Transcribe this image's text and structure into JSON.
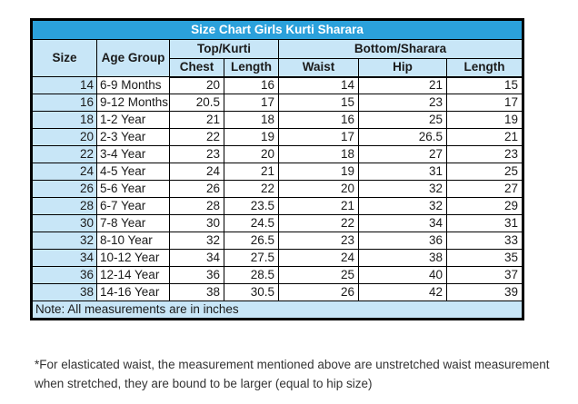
{
  "chart_data": {
    "type": "table",
    "title": "Size Chart Girls Kurti Sharara",
    "units": "inches",
    "header": {
      "size": "Size",
      "age_group": "Age Group",
      "top_group": "Top/Kurti",
      "bottom_group": "Bottom/Sharara",
      "chest": "Chest",
      "top_length": "Length",
      "waist": "Waist",
      "hip": "Hip",
      "bottom_length": "Length"
    },
    "columns": [
      "Size",
      "Age Group",
      "Chest",
      "Length",
      "Waist",
      "Hip",
      "Length"
    ],
    "column_groups": [
      {
        "label": "Top/Kurti",
        "columns": [
          "Chest",
          "Length"
        ]
      },
      {
        "label": "Bottom/Sharara",
        "columns": [
          "Waist",
          "Hip",
          "Length"
        ]
      }
    ],
    "rows": [
      [
        14,
        "6-9 Months",
        20,
        16,
        14,
        21,
        15
      ],
      [
        16,
        "9-12 Months",
        20.5,
        17,
        15,
        23,
        17
      ],
      [
        18,
        "1-2 Year",
        21,
        18,
        16,
        25,
        19
      ],
      [
        20,
        "2-3 Year",
        22,
        19,
        17,
        26.5,
        21
      ],
      [
        22,
        "3-4 Year",
        23,
        20,
        18,
        27,
        23
      ],
      [
        24,
        "4-5 Year",
        24,
        21,
        19,
        31,
        25
      ],
      [
        26,
        "5-6 Year",
        26,
        22,
        20,
        32,
        27
      ],
      [
        28,
        "6-7 Year",
        28,
        23.5,
        21,
        32,
        29
      ],
      [
        30,
        "7-8 Year",
        30,
        24.5,
        22,
        34,
        31
      ],
      [
        32,
        "8-10 Year",
        32,
        26.5,
        23,
        36,
        33
      ],
      [
        34,
        "10-12 Year",
        34,
        27.5,
        24,
        38,
        35
      ],
      [
        36,
        "12-14 Year",
        36,
        28.5,
        25,
        40,
        37
      ],
      [
        38,
        "14-16 Year",
        38,
        30.5,
        26,
        42,
        39
      ]
    ],
    "note": "Note: All measurements are in inches"
  },
  "footnote": {
    "lines": [
      "*For elasticated waist, the measurement mentioned above are unstretched waist measurement",
      "when stretched, they are bound to be larger (equal to hip size)"
    ]
  },
  "colors": {
    "title_bg": "#2BA1DB",
    "title_text": "#FFFFFF",
    "header_bg": "#C8E6F7",
    "border": "#000000",
    "footnote_text": "#333333"
  }
}
